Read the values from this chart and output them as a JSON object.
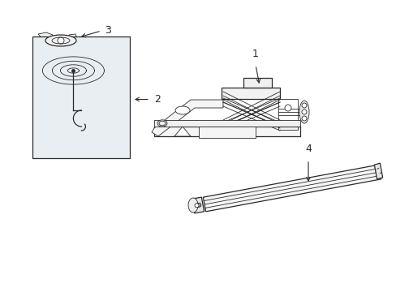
{
  "background_color": "#ffffff",
  "line_color": "#2a2a2a",
  "box_fill": "#e8eef2",
  "figsize": [
    4.89,
    3.6
  ],
  "dpi": 100,
  "lw_thin": 0.6,
  "lw_med": 0.9,
  "lw_thick": 1.2
}
